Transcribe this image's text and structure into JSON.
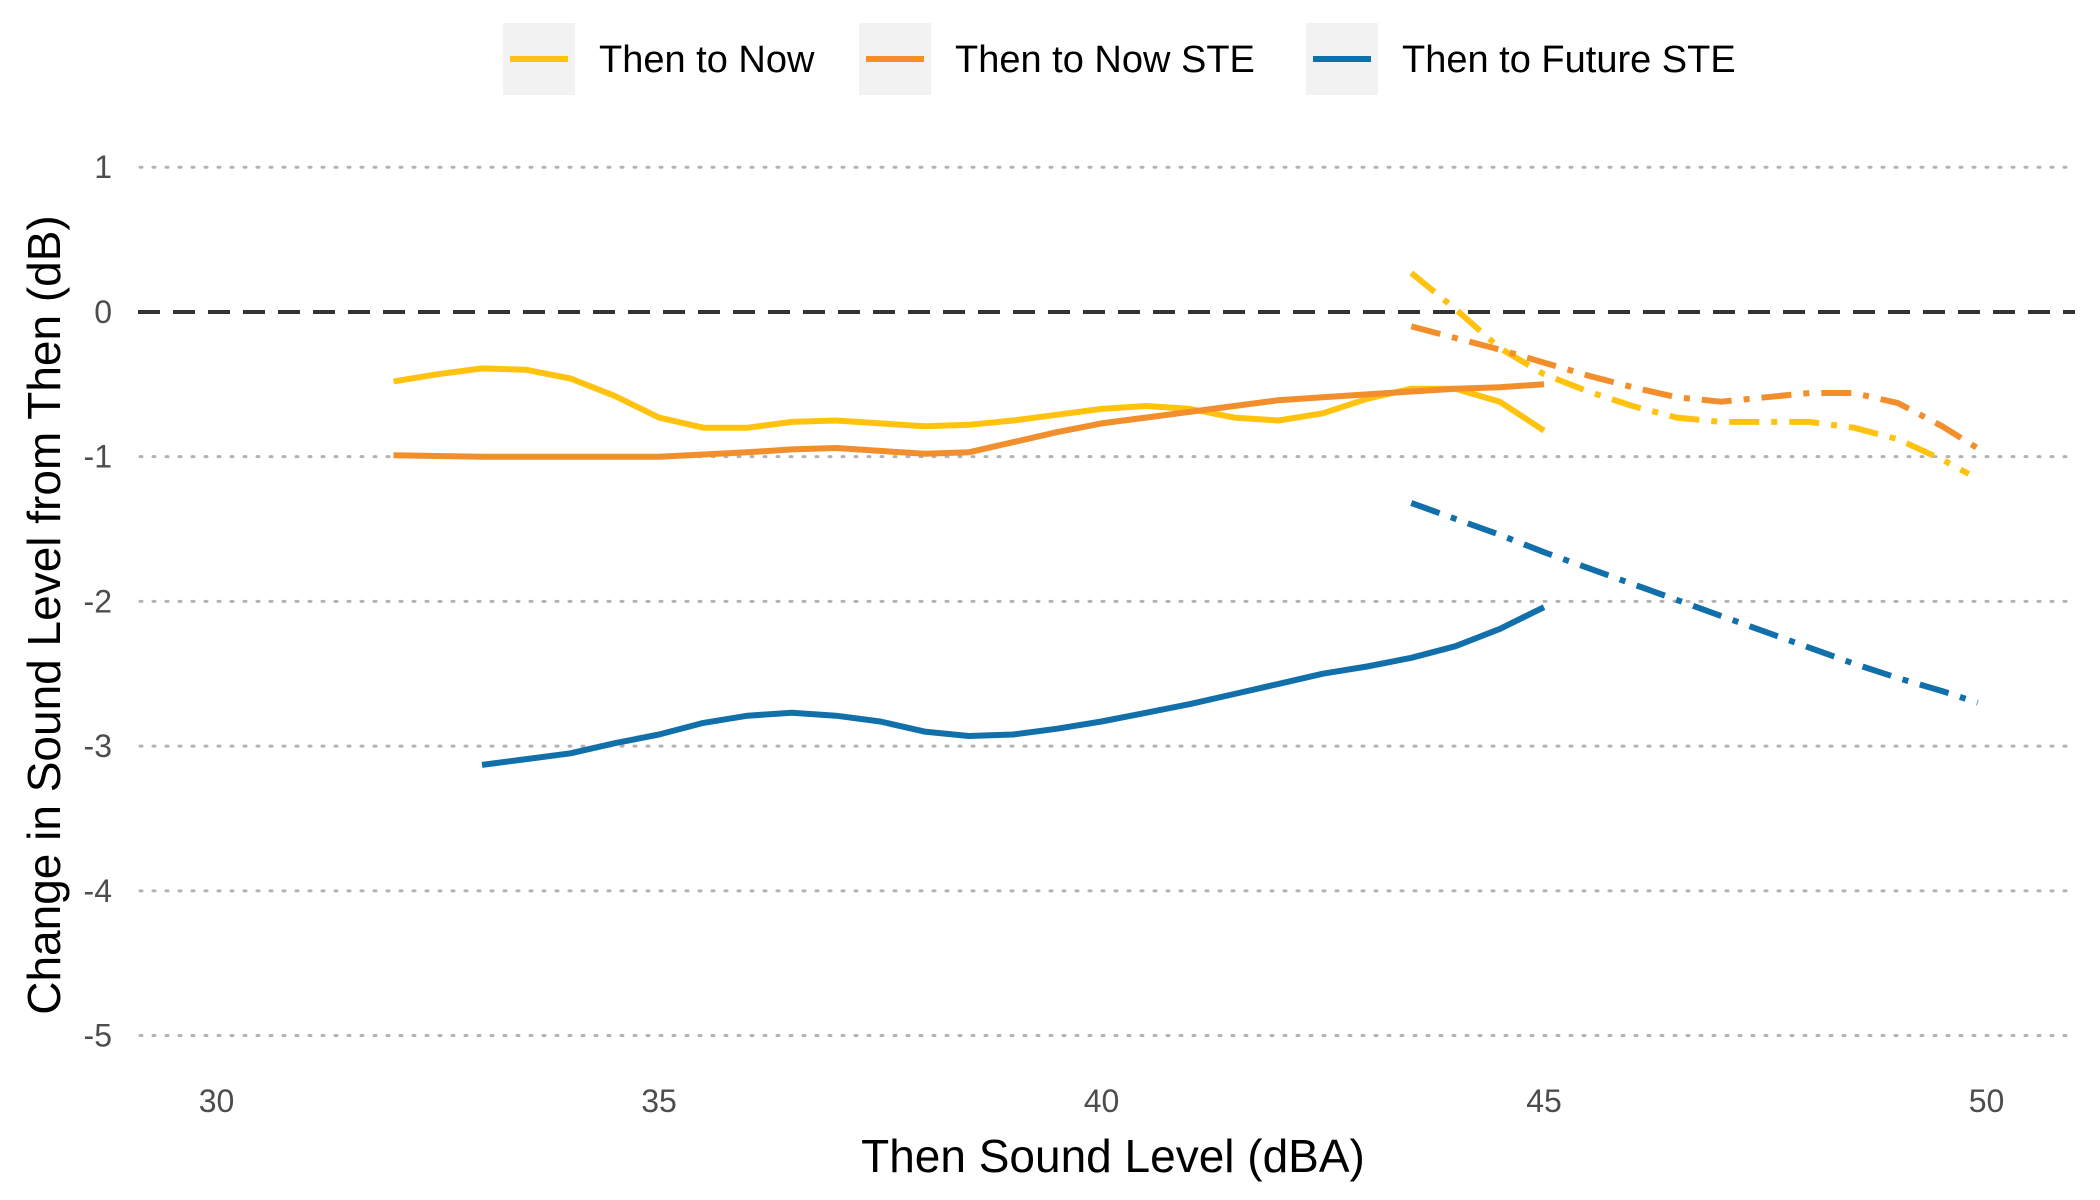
{
  "chart_data": {
    "type": "line",
    "title": "",
    "xlabel": "Then Sound Level (dBA)",
    "ylabel": "Change in Sound Level from Then (dB)",
    "xlim": [
      29,
      51
    ],
    "ylim": [
      -5.1,
      1.05
    ],
    "xticks": [
      30,
      35,
      40,
      45,
      50
    ],
    "yticks": [
      1,
      0,
      -1,
      -2,
      -3,
      -4,
      -5
    ],
    "grid": "horizontal dotted",
    "legend_position": "top",
    "reference_line": {
      "y": 0,
      "style": "dashed",
      "color": "#333333"
    },
    "legend": [
      {
        "label": "Then to Now",
        "color": "#FFC20E"
      },
      {
        "label": "Then to Now STE",
        "color": "#F28E2B"
      },
      {
        "label": "Then to Future STE",
        "color": "#1170AA"
      }
    ],
    "series": [
      {
        "legend_index": 0,
        "color": "#FFC20E",
        "style": "solid",
        "points": [
          [
            32,
            -0.48
          ],
          [
            32.5,
            -0.43
          ],
          [
            33,
            -0.39
          ],
          [
            33.5,
            -0.4
          ],
          [
            34,
            -0.46
          ],
          [
            34.5,
            -0.58
          ],
          [
            35,
            -0.73
          ],
          [
            35.5,
            -0.8
          ],
          [
            36,
            -0.8
          ],
          [
            36.5,
            -0.76
          ],
          [
            37,
            -0.75
          ],
          [
            37.5,
            -0.77
          ],
          [
            38,
            -0.79
          ],
          [
            38.5,
            -0.78
          ],
          [
            39,
            -0.75
          ],
          [
            39.5,
            -0.71
          ],
          [
            40,
            -0.67
          ],
          [
            40.5,
            -0.65
          ],
          [
            41,
            -0.67
          ],
          [
            41.5,
            -0.73
          ],
          [
            42,
            -0.75
          ],
          [
            42.5,
            -0.7
          ],
          [
            43,
            -0.6
          ],
          [
            43.5,
            -0.53
          ],
          [
            44,
            -0.53
          ],
          [
            44.5,
            -0.62
          ],
          [
            45,
            -0.82
          ]
        ]
      },
      {
        "legend_index": 1,
        "color": "#F28E2B",
        "style": "solid",
        "points": [
          [
            32,
            -0.99
          ],
          [
            33,
            -1.0
          ],
          [
            34,
            -1.0
          ],
          [
            35,
            -1.0
          ],
          [
            36,
            -0.97
          ],
          [
            36.5,
            -0.95
          ],
          [
            37,
            -0.94
          ],
          [
            37.5,
            -0.96
          ],
          [
            38,
            -0.98
          ],
          [
            38.5,
            -0.97
          ],
          [
            39,
            -0.9
          ],
          [
            39.5,
            -0.83
          ],
          [
            40,
            -0.77
          ],
          [
            40.5,
            -0.73
          ],
          [
            41,
            -0.69
          ],
          [
            41.5,
            -0.65
          ],
          [
            42,
            -0.61
          ],
          [
            42.5,
            -0.59
          ],
          [
            43,
            -0.57
          ],
          [
            43.5,
            -0.55
          ],
          [
            44,
            -0.53
          ],
          [
            44.5,
            -0.52
          ],
          [
            45,
            -0.5
          ]
        ]
      },
      {
        "legend_index": 2,
        "color": "#1170AA",
        "style": "solid",
        "points": [
          [
            33,
            -3.13
          ],
          [
            33.5,
            -3.09
          ],
          [
            34,
            -3.05
          ],
          [
            34.5,
            -2.98
          ],
          [
            35,
            -2.92
          ],
          [
            35.5,
            -2.84
          ],
          [
            36,
            -2.79
          ],
          [
            36.5,
            -2.77
          ],
          [
            37,
            -2.79
          ],
          [
            37.5,
            -2.83
          ],
          [
            38,
            -2.9
          ],
          [
            38.5,
            -2.93
          ],
          [
            39,
            -2.92
          ],
          [
            39.5,
            -2.88
          ],
          [
            40,
            -2.83
          ],
          [
            40.5,
            -2.77
          ],
          [
            41,
            -2.71
          ],
          [
            41.5,
            -2.64
          ],
          [
            42,
            -2.57
          ],
          [
            42.5,
            -2.5
          ],
          [
            43,
            -2.45
          ],
          [
            43.5,
            -2.39
          ],
          [
            44,
            -2.31
          ],
          [
            44.5,
            -2.19
          ],
          [
            45,
            -2.04
          ]
        ]
      },
      {
        "legend_index": 0,
        "color": "#FFC20E",
        "style": "dotdash",
        "points": [
          [
            43.5,
            0.27
          ],
          [
            44,
            0.02
          ],
          [
            44.5,
            -0.25
          ],
          [
            45,
            -0.43
          ],
          [
            45.5,
            -0.55
          ],
          [
            46,
            -0.65
          ],
          [
            46.5,
            -0.73
          ],
          [
            47,
            -0.76
          ],
          [
            47.5,
            -0.76
          ],
          [
            48,
            -0.76
          ],
          [
            48.5,
            -0.8
          ],
          [
            49,
            -0.88
          ],
          [
            49.5,
            -1.02
          ],
          [
            49.8,
            -1.12
          ]
        ]
      },
      {
        "legend_index": 1,
        "color": "#F28E2B",
        "style": "dotdash",
        "points": [
          [
            43.5,
            -0.1
          ],
          [
            44,
            -0.18
          ],
          [
            44.5,
            -0.26
          ],
          [
            45,
            -0.35
          ],
          [
            45.5,
            -0.44
          ],
          [
            46,
            -0.52
          ],
          [
            46.5,
            -0.59
          ],
          [
            47,
            -0.62
          ],
          [
            47.5,
            -0.59
          ],
          [
            48,
            -0.56
          ],
          [
            48.5,
            -0.56
          ],
          [
            49,
            -0.63
          ],
          [
            49.5,
            -0.79
          ],
          [
            50,
            -0.98
          ]
        ]
      },
      {
        "legend_index": 2,
        "color": "#1170AA",
        "style": "dotdash",
        "points": [
          [
            43.5,
            -1.32
          ],
          [
            44,
            -1.43
          ],
          [
            44.5,
            -1.54
          ],
          [
            45,
            -1.66
          ],
          [
            45.5,
            -1.77
          ],
          [
            46,
            -1.88
          ],
          [
            46.5,
            -1.99
          ],
          [
            47,
            -2.1
          ],
          [
            47.5,
            -2.21
          ],
          [
            48,
            -2.32
          ],
          [
            48.5,
            -2.43
          ],
          [
            49,
            -2.53
          ],
          [
            49.5,
            -2.62
          ],
          [
            49.9,
            -2.7
          ]
        ]
      }
    ]
  }
}
